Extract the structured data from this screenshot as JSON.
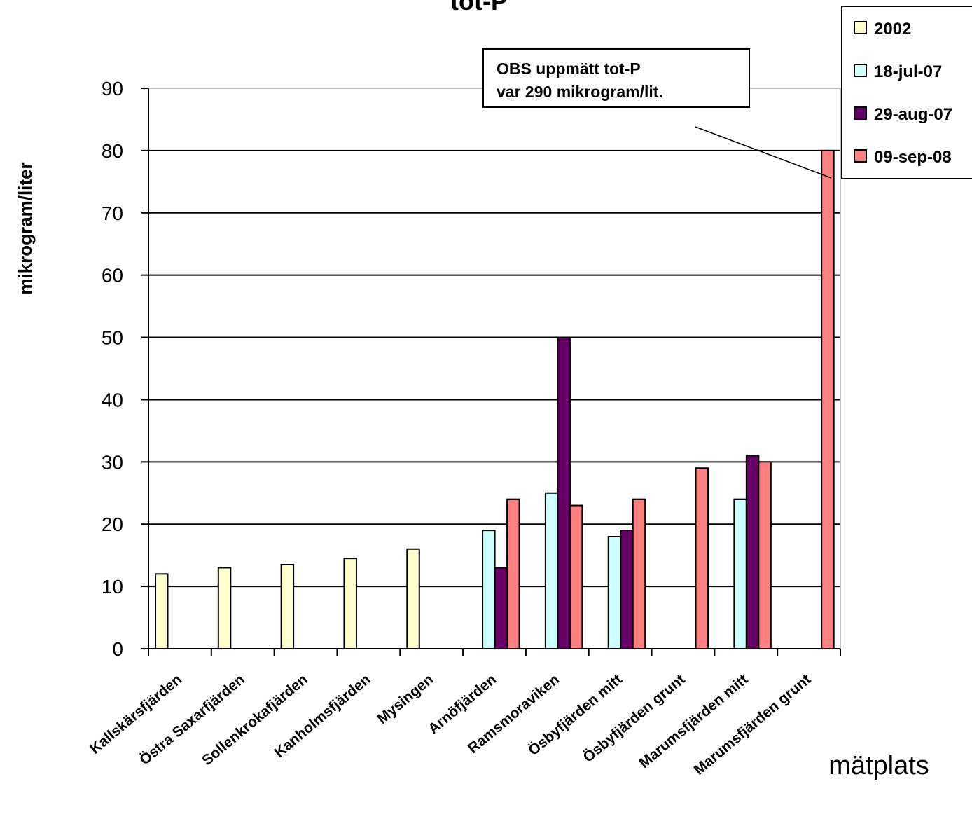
{
  "chart_data": {
    "type": "bar",
    "title": "tot-P",
    "xlabel": "mätplats",
    "ylabel": "mikrogram/liter",
    "ylim": [
      0,
      90
    ],
    "yticks": [
      0,
      10,
      20,
      30,
      40,
      50,
      60,
      70,
      80,
      90
    ],
    "grid": true,
    "legend_position": "top-right",
    "categories": [
      "Kallskärsfjärden",
      "Östra Saxarfjärden",
      "Sollenkrokafjärden",
      "Kanholmsfjärden",
      "Mysingen",
      "Arnöfjärden",
      "Ramsmoraviken",
      "Ösbyfjärden mitt",
      "Ösbyfjärden grunt",
      "Marumsfjärden mitt",
      "Marumsfjärden grunt"
    ],
    "series": [
      {
        "name": "2002",
        "color": "#ffffcc",
        "values": [
          12,
          13,
          13.5,
          14.5,
          16,
          null,
          null,
          null,
          null,
          null,
          null
        ]
      },
      {
        "name": "18-jul-07",
        "color": "#ccffff",
        "values": [
          null,
          null,
          null,
          null,
          null,
          19,
          25,
          18,
          null,
          24,
          null
        ]
      },
      {
        "name": "29-aug-07",
        "color": "#660066",
        "values": [
          null,
          null,
          null,
          null,
          null,
          13,
          50,
          19,
          null,
          31,
          null
        ]
      },
      {
        "name": "09-sep-08",
        "color": "#ff8080",
        "values": [
          null,
          null,
          null,
          null,
          null,
          24,
          23,
          24,
          29,
          30,
          80
        ]
      }
    ],
    "annotations": [
      {
        "text_lines": [
          "OBS uppmätt tot-P",
          "var 290 mikrogram/lit."
        ],
        "category": "Marumsfjärden grunt",
        "series": "09-sep-08"
      }
    ]
  }
}
